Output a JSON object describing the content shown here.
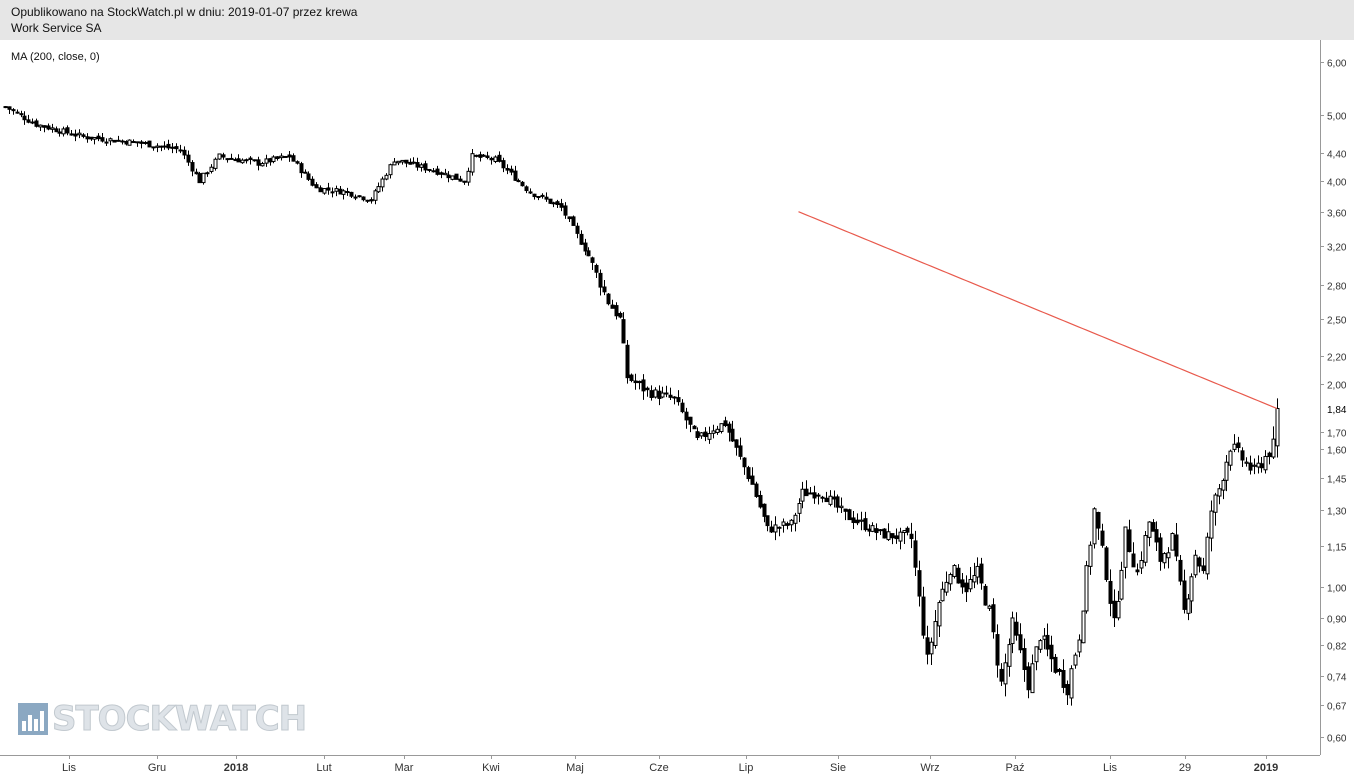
{
  "header": {
    "line1": "Opublikowano na StockWatch.pl w dniu: 2019-01-07 przez krewa",
    "line2": "Work Service SA"
  },
  "indicator_label": "MA (200, close, 0)",
  "watermark": "STOCKWATCH",
  "colors": {
    "candle": "#000000",
    "ma_line": "#e8594c",
    "axis": "#999999",
    "header_bg": "#e6e6e6"
  },
  "chart_data": {
    "type": "candlestick",
    "title": "Work Service SA",
    "y_scale": "log",
    "ylim": [
      0.57,
      6.4
    ],
    "y_ticks": [
      "6,00",
      "5,00",
      "4,40",
      "4,00",
      "3,60",
      "3,20",
      "2,80",
      "2,50",
      "2,20",
      "2,00",
      "1,70",
      "1,60",
      "1,45",
      "1,30",
      "1,15",
      "1,00",
      "0,90",
      "0,82",
      "0,74",
      "0,67",
      "0,60"
    ],
    "last_price_label": "1,84",
    "x_labels": [
      "Lis",
      "Gru",
      "2018",
      "Lut",
      "Mar",
      "Kwi",
      "Maj",
      "Cze",
      "Lip",
      "Sie",
      "Wrz",
      "Paź",
      "Lis",
      "29",
      "2019"
    ],
    "x_label_bold": [
      "2018",
      "2019"
    ],
    "anchors": [
      {
        "i": 0,
        "c": 5.15
      },
      {
        "i": 8,
        "c": 4.85
      },
      {
        "i": 20,
        "c": 4.65
      },
      {
        "i": 35,
        "c": 4.55
      },
      {
        "i": 45,
        "c": 4.45
      },
      {
        "i": 50,
        "c": 4.0
      },
      {
        "i": 55,
        "c": 4.35
      },
      {
        "i": 65,
        "c": 4.25
      },
      {
        "i": 73,
        "c": 4.35
      },
      {
        "i": 80,
        "c": 3.9
      },
      {
        "i": 88,
        "c": 3.85
      },
      {
        "i": 94,
        "c": 3.75
      },
      {
        "i": 100,
        "c": 4.3
      },
      {
        "i": 110,
        "c": 4.15
      },
      {
        "i": 118,
        "c": 4.0
      },
      {
        "i": 120,
        "c": 4.35
      },
      {
        "i": 126,
        "c": 4.3
      },
      {
        "i": 135,
        "c": 3.85
      },
      {
        "i": 143,
        "c": 3.65
      },
      {
        "i": 150,
        "c": 3.1
      },
      {
        "i": 155,
        "c": 2.65
      },
      {
        "i": 158,
        "c": 2.5
      },
      {
        "i": 160,
        "c": 2.05
      },
      {
        "i": 165,
        "c": 1.95
      },
      {
        "i": 172,
        "c": 1.9
      },
      {
        "i": 178,
        "c": 1.65
      },
      {
        "i": 182,
        "c": 1.72
      },
      {
        "i": 185,
        "c": 1.75
      },
      {
        "i": 192,
        "c": 1.42
      },
      {
        "i": 196,
        "c": 1.22
      },
      {
        "i": 202,
        "c": 1.24
      },
      {
        "i": 205,
        "c": 1.38
      },
      {
        "i": 210,
        "c": 1.38
      },
      {
        "i": 216,
        "c": 1.28
      },
      {
        "i": 225,
        "c": 1.2
      },
      {
        "i": 233,
        "c": 1.18
      },
      {
        "i": 237,
        "c": 0.78
      },
      {
        "i": 240,
        "c": 0.95
      },
      {
        "i": 243,
        "c": 1.07
      },
      {
        "i": 247,
        "c": 1.0
      },
      {
        "i": 250,
        "c": 1.05
      },
      {
        "i": 253,
        "c": 0.92
      },
      {
        "i": 256,
        "c": 0.72
      },
      {
        "i": 259,
        "c": 0.88
      },
      {
        "i": 263,
        "c": 0.72
      },
      {
        "i": 266,
        "c": 0.85
      },
      {
        "i": 270,
        "c": 0.76
      },
      {
        "i": 273,
        "c": 0.71
      },
      {
        "i": 276,
        "c": 0.85
      },
      {
        "i": 280,
        "c": 1.3
      },
      {
        "i": 283,
        "c": 1.05
      },
      {
        "i": 285,
        "c": 0.88
      },
      {
        "i": 288,
        "c": 1.2
      },
      {
        "i": 291,
        "c": 1.05
      },
      {
        "i": 294,
        "c": 1.25
      },
      {
        "i": 297,
        "c": 1.1
      },
      {
        "i": 300,
        "c": 1.18
      },
      {
        "i": 303,
        "c": 0.92
      },
      {
        "i": 306,
        "c": 1.12
      },
      {
        "i": 308,
        "c": 1.05
      },
      {
        "i": 310,
        "c": 1.3
      },
      {
        "i": 312,
        "c": 1.4
      },
      {
        "i": 315,
        "c": 1.62
      },
      {
        "i": 318,
        "c": 1.55
      },
      {
        "i": 321,
        "c": 1.48
      },
      {
        "i": 324,
        "c": 1.56
      },
      {
        "i": 326,
        "c": 1.62
      },
      {
        "i": 327,
        "c": 1.84
      }
    ],
    "ma200": {
      "start_index": 204,
      "start_value": 3.6,
      "end_value": 1.84
    }
  }
}
